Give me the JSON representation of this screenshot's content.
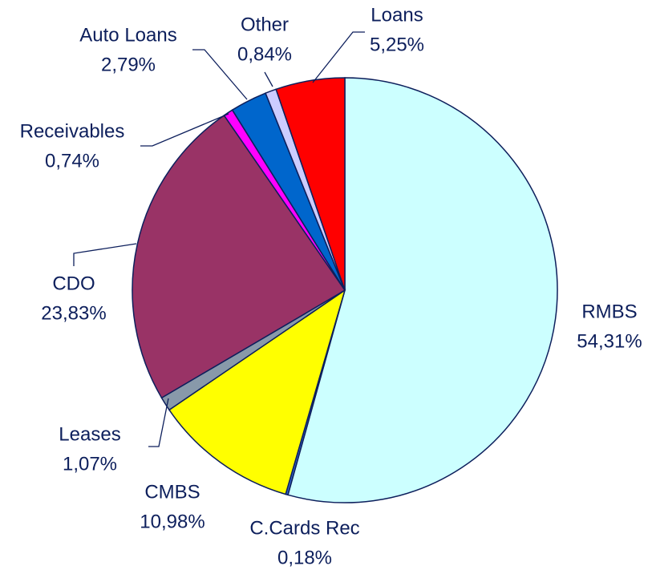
{
  "chart_data": {
    "type": "pie",
    "categories": [
      "RMBS",
      "C.Cards Rec",
      "CMBS",
      "Leases",
      "CDO",
      "Receivables",
      "Auto Loans",
      "Other",
      "Loans"
    ],
    "values": [
      54.31,
      0.18,
      10.98,
      1.07,
      23.83,
      0.74,
      2.79,
      0.84,
      5.25
    ],
    "value_labels": [
      "54,31%",
      "0,18%",
      "10,98%",
      "1,07%",
      "23,83%",
      "0,74%",
      "2,79%",
      "0,84%",
      "5,25%"
    ],
    "colors": [
      "#ccffff",
      "#3366cc",
      "#ffff00",
      "#8899aa",
      "#993366",
      "#ff00ff",
      "#0066cc",
      "#ccccff",
      "#ff0000"
    ]
  }
}
